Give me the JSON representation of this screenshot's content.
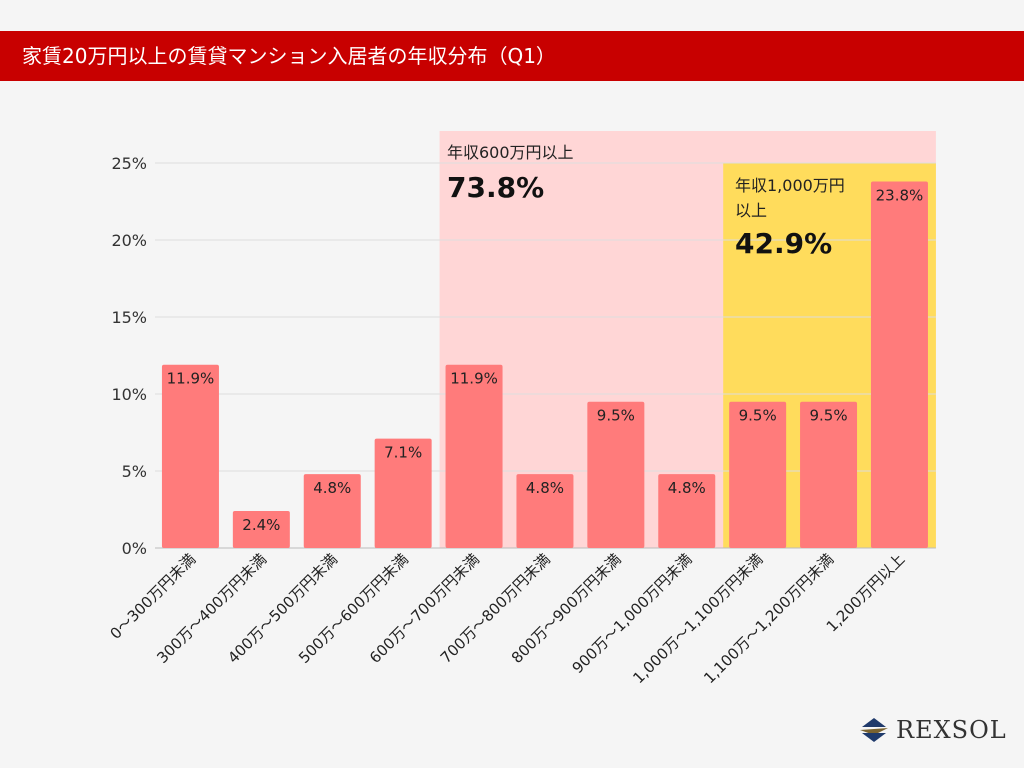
{
  "header": {
    "title": "家賃20万円以上の賃貸マンション入居者の年収分布（Q1）"
  },
  "chart_data": {
    "type": "bar",
    "categories": [
      "0〜300万円未満",
      "300万〜400万円未満",
      "400万〜500万円未満",
      "500万〜600万円未満",
      "600万〜700万円未満",
      "700万〜800万円未満",
      "800万〜900万円未満",
      "900万〜1,000万円未満",
      "1,000万〜1,100万円未満",
      "1,100万〜1,200万円未満",
      "1,200万円以上"
    ],
    "values": [
      11.9,
      2.4,
      4.8,
      7.1,
      11.9,
      4.8,
      9.5,
      4.8,
      9.5,
      9.5,
      23.8
    ],
    "data_labels": [
      "11.9%",
      "2.4%",
      "4.8%",
      "7.1%",
      "11.9%",
      "4.8%",
      "9.5%",
      "4.8%",
      "9.5%",
      "9.5%",
      "23.8%"
    ],
    "ylim": [
      0,
      25
    ],
    "yticks": [
      "0%",
      "5%",
      "10%",
      "15%",
      "20%",
      "25%"
    ],
    "grid": true,
    "bar_color": "#ff7b7b",
    "annotations": [
      {
        "label": "年収600万円以上",
        "value": "73.8%",
        "from_category": 4,
        "color": "#ffd6d6"
      },
      {
        "label_line1": "年収1,000万円",
        "label_line2": "以上",
        "value": "42.9%",
        "from_category": 8,
        "color": "#ffdc5c"
      }
    ]
  },
  "logo": {
    "text": "REXSOL"
  }
}
